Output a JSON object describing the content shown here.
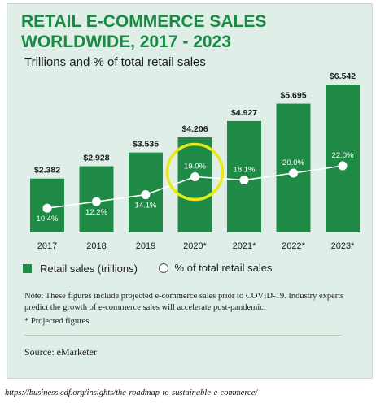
{
  "header": {
    "title_line1": "RETAIL E-COMMERCE SALES",
    "title_line2": "WORLDWIDE, 2017 - 2023",
    "subtitle": "Trillions and % of total retail sales"
  },
  "legend": {
    "bars": "Retail sales (trillions)",
    "line": "% of total retail sales"
  },
  "notes": {
    "note": "Note: These figures include projected e-commerce sales prior to COVID-19. Industry experts predict the growth of e-commerce sales will accelerate post-pandemic.",
    "projected": "* Projected figures.",
    "source": "Source: eMarketer"
  },
  "url": "https://business.edf.org/insights/the-roadmap-to-sustainable-e-commerce/",
  "colors": {
    "bar": "#1f8a45",
    "title": "#178a43",
    "highlight": "#e8e81a",
    "line": "#ffffff"
  },
  "chart_data": {
    "type": "bar",
    "categories": [
      "2017",
      "2018",
      "2019",
      "2020*",
      "2021*",
      "2022*",
      "2023*"
    ],
    "series": [
      {
        "name": "Retail sales (trillions)",
        "type": "bar",
        "values": [
          2.382,
          2.928,
          3.535,
          4.206,
          4.927,
          5.695,
          6.542
        ],
        "labels": [
          "$2.382",
          "$2.928",
          "$3.535",
          "$4.206",
          "$4.927",
          "$5.695",
          "$6.542"
        ]
      },
      {
        "name": "% of total retail sales",
        "type": "line",
        "values": [
          10.4,
          12.2,
          14.1,
          19.0,
          18.1,
          20.0,
          22.0
        ],
        "labels": [
          "10.4%",
          "12.2%",
          "14.1%",
          "19.0%",
          "18.1%",
          "20.0%",
          "22.0%"
        ]
      }
    ],
    "highlighted_category": "2020*"
  }
}
